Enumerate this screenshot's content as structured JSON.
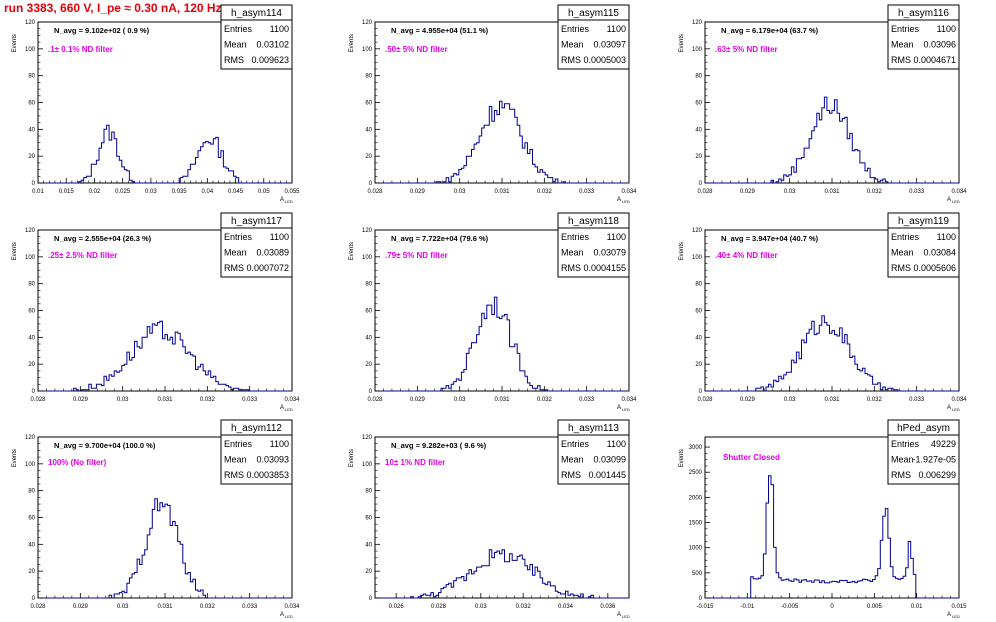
{
  "title": "run 3383,   660 V, I_pe ≈ 0.30 nA, 120 Hz",
  "ylabel": "Events",
  "xlabel_main": "A",
  "xlabel_sub": "LED",
  "colors": {
    "title": "#e8000b",
    "annotation": "#e600e6",
    "histogram": "#000099",
    "frame": "#000000"
  },
  "stat_labels": {
    "entries": "Entries",
    "mean": "Mean",
    "rms": "RMS"
  },
  "chart_data": [
    {
      "type": "histogram",
      "hist_name": "h_asym114",
      "navg": "N_avg = 9.102e+02 ( 0.9 %)",
      "filter": ".1± 0.1% ND filter",
      "entries": "1100",
      "mean": "0.03102",
      "rms": "0.009623",
      "xlim": [
        0.01,
        0.055
      ],
      "ylim": [
        0,
        120
      ],
      "xticks": [
        "0.01",
        "0.015",
        "0.02",
        "0.025",
        "0.03",
        "0.035",
        "0.04",
        "0.045",
        "0.05",
        "0.055"
      ],
      "yticks": [
        "0",
        "20",
        "40",
        "60",
        "80",
        "100",
        "120"
      ],
      "peaks": [
        {
          "mu": 0.0225,
          "sigma": 0.0018,
          "amp": 38
        },
        {
          "mu": 0.0405,
          "sigma": 0.0022,
          "amp": 33
        }
      ]
    },
    {
      "type": "histogram",
      "hist_name": "h_asym115",
      "navg": "N_avg = 4.955e+04 (51.1 %)",
      "filter": ".50± 5% ND filter",
      "entries": "1100",
      "mean": "0.03097",
      "rms": "0.0005003",
      "xlim": [
        0.028,
        0.034
      ],
      "ylim": [
        0,
        120
      ],
      "xticks": [
        "0.028",
        "0.029",
        "0.03",
        "0.031",
        "0.032",
        "0.033",
        "0.034"
      ],
      "yticks": [
        "0",
        "20",
        "40",
        "60",
        "80",
        "100",
        "120"
      ],
      "peaks": [
        {
          "mu": 0.03097,
          "sigma": 0.0005,
          "amp": 58
        }
      ]
    },
    {
      "type": "histogram",
      "hist_name": "h_asym116",
      "navg": "N_avg = 6.179e+04 (63.7 %)",
      "filter": ".63± 5% ND filter",
      "entries": "1100",
      "mean": "0.03096",
      "rms": "0.0004671",
      "xlim": [
        0.028,
        0.034
      ],
      "ylim": [
        0,
        120
      ],
      "xticks": [
        "0.028",
        "0.029",
        "0.03",
        "0.031",
        "0.032",
        "0.033",
        "0.034"
      ],
      "yticks": [
        "0",
        "20",
        "40",
        "60",
        "80",
        "100",
        "120"
      ],
      "peaks": [
        {
          "mu": 0.03096,
          "sigma": 0.00047,
          "amp": 58
        }
      ]
    },
    {
      "type": "histogram",
      "hist_name": "h_asym117",
      "navg": "N_avg = 2.555e+04 (26.3 %)",
      "filter": ".25± 2.5% ND filter",
      "entries": "1100",
      "mean": "0.03089",
      "rms": "0.0007072",
      "xlim": [
        0.028,
        0.034
      ],
      "ylim": [
        0,
        120
      ],
      "xticks": [
        "0.028",
        "0.029",
        "0.03",
        "0.031",
        "0.032",
        "0.033",
        "0.034"
      ],
      "yticks": [
        "0",
        "20",
        "40",
        "60",
        "80",
        "100",
        "120"
      ],
      "peaks": [
        {
          "mu": 0.03089,
          "sigma": 0.0007,
          "amp": 45
        }
      ]
    },
    {
      "type": "histogram",
      "hist_name": "h_asym118",
      "navg": "N_avg = 7.722e+04 (79.6 %)",
      "filter": ".79± 5% ND filter",
      "entries": "1100",
      "mean": "0.03079",
      "rms": "0.0004155",
      "xlim": [
        0.028,
        0.034
      ],
      "ylim": [
        0,
        120
      ],
      "xticks": [
        "0.028",
        "0.029",
        "0.03",
        "0.031",
        "0.032",
        "0.033",
        "0.034"
      ],
      "yticks": [
        "0",
        "20",
        "40",
        "60",
        "80",
        "100",
        "120"
      ],
      "peaks": [
        {
          "mu": 0.03079,
          "sigma": 0.00042,
          "amp": 66
        }
      ]
    },
    {
      "type": "histogram",
      "hist_name": "h_asym119",
      "navg": "N_avg = 3.947e+04 (40.7 %)",
      "filter": ".40± 4% ND filter",
      "entries": "1100",
      "mean": "0.03084",
      "rms": "0.0005606",
      "xlim": [
        0.028,
        0.034
      ],
      "ylim": [
        0,
        120
      ],
      "xticks": [
        "0.028",
        "0.029",
        "0.03",
        "0.031",
        "0.032",
        "0.033",
        "0.034"
      ],
      "yticks": [
        "0",
        "20",
        "40",
        "60",
        "80",
        "100",
        "120"
      ],
      "peaks": [
        {
          "mu": 0.03084,
          "sigma": 0.00056,
          "amp": 52
        }
      ]
    },
    {
      "type": "histogram",
      "hist_name": "h_asym112",
      "navg": "N_avg = 9.700e+04 (100.0 %)",
      "filter": "100% (No filter)",
      "entries": "1100",
      "mean": "0.03093",
      "rms": "0.0003853",
      "xlim": [
        0.028,
        0.034
      ],
      "ylim": [
        0,
        120
      ],
      "xticks": [
        "0.028",
        "0.029",
        "0.03",
        "0.031",
        "0.032",
        "0.033",
        "0.034"
      ],
      "yticks": [
        "0",
        "20",
        "40",
        "60",
        "80",
        "100",
        "120"
      ],
      "peaks": [
        {
          "mu": 0.03093,
          "sigma": 0.00039,
          "amp": 70
        }
      ]
    },
    {
      "type": "histogram",
      "hist_name": "h_asym113",
      "navg": "N_avg = 9.282e+03 ( 9.6 %)",
      "filter": "10± 1% ND filter",
      "entries": "1100",
      "mean": "0.03099",
      "rms": "0.001445",
      "xlim": [
        0.025,
        0.037
      ],
      "ylim": [
        0,
        120
      ],
      "xticks": [
        "0.026",
        "0.028",
        "0.03",
        "0.032",
        "0.034",
        "0.036"
      ],
      "yticks": [
        "0",
        "20",
        "40",
        "60",
        "80",
        "100",
        "120"
      ],
      "peaks": [
        {
          "mu": 0.031,
          "sigma": 0.0015,
          "amp": 32
        }
      ]
    },
    {
      "type": "histogram",
      "hist_name": "hPed_asym",
      "navg": "",
      "filter": "Shutter Closed",
      "entries": "49229",
      "mean": "-1.927e-05",
      "rms": "0.006299",
      "xlim": [
        -0.015,
        0.015
      ],
      "ylim": [
        0,
        3200
      ],
      "xticks": [
        "-0.015",
        "-0.01",
        "-0.005",
        "0",
        "0.005",
        "0.01",
        "0.015"
      ],
      "yticks": [
        "0",
        "500",
        "1000",
        "1500",
        "2000",
        "2500",
        "3000"
      ],
      "shape": "pedestal"
    }
  ]
}
